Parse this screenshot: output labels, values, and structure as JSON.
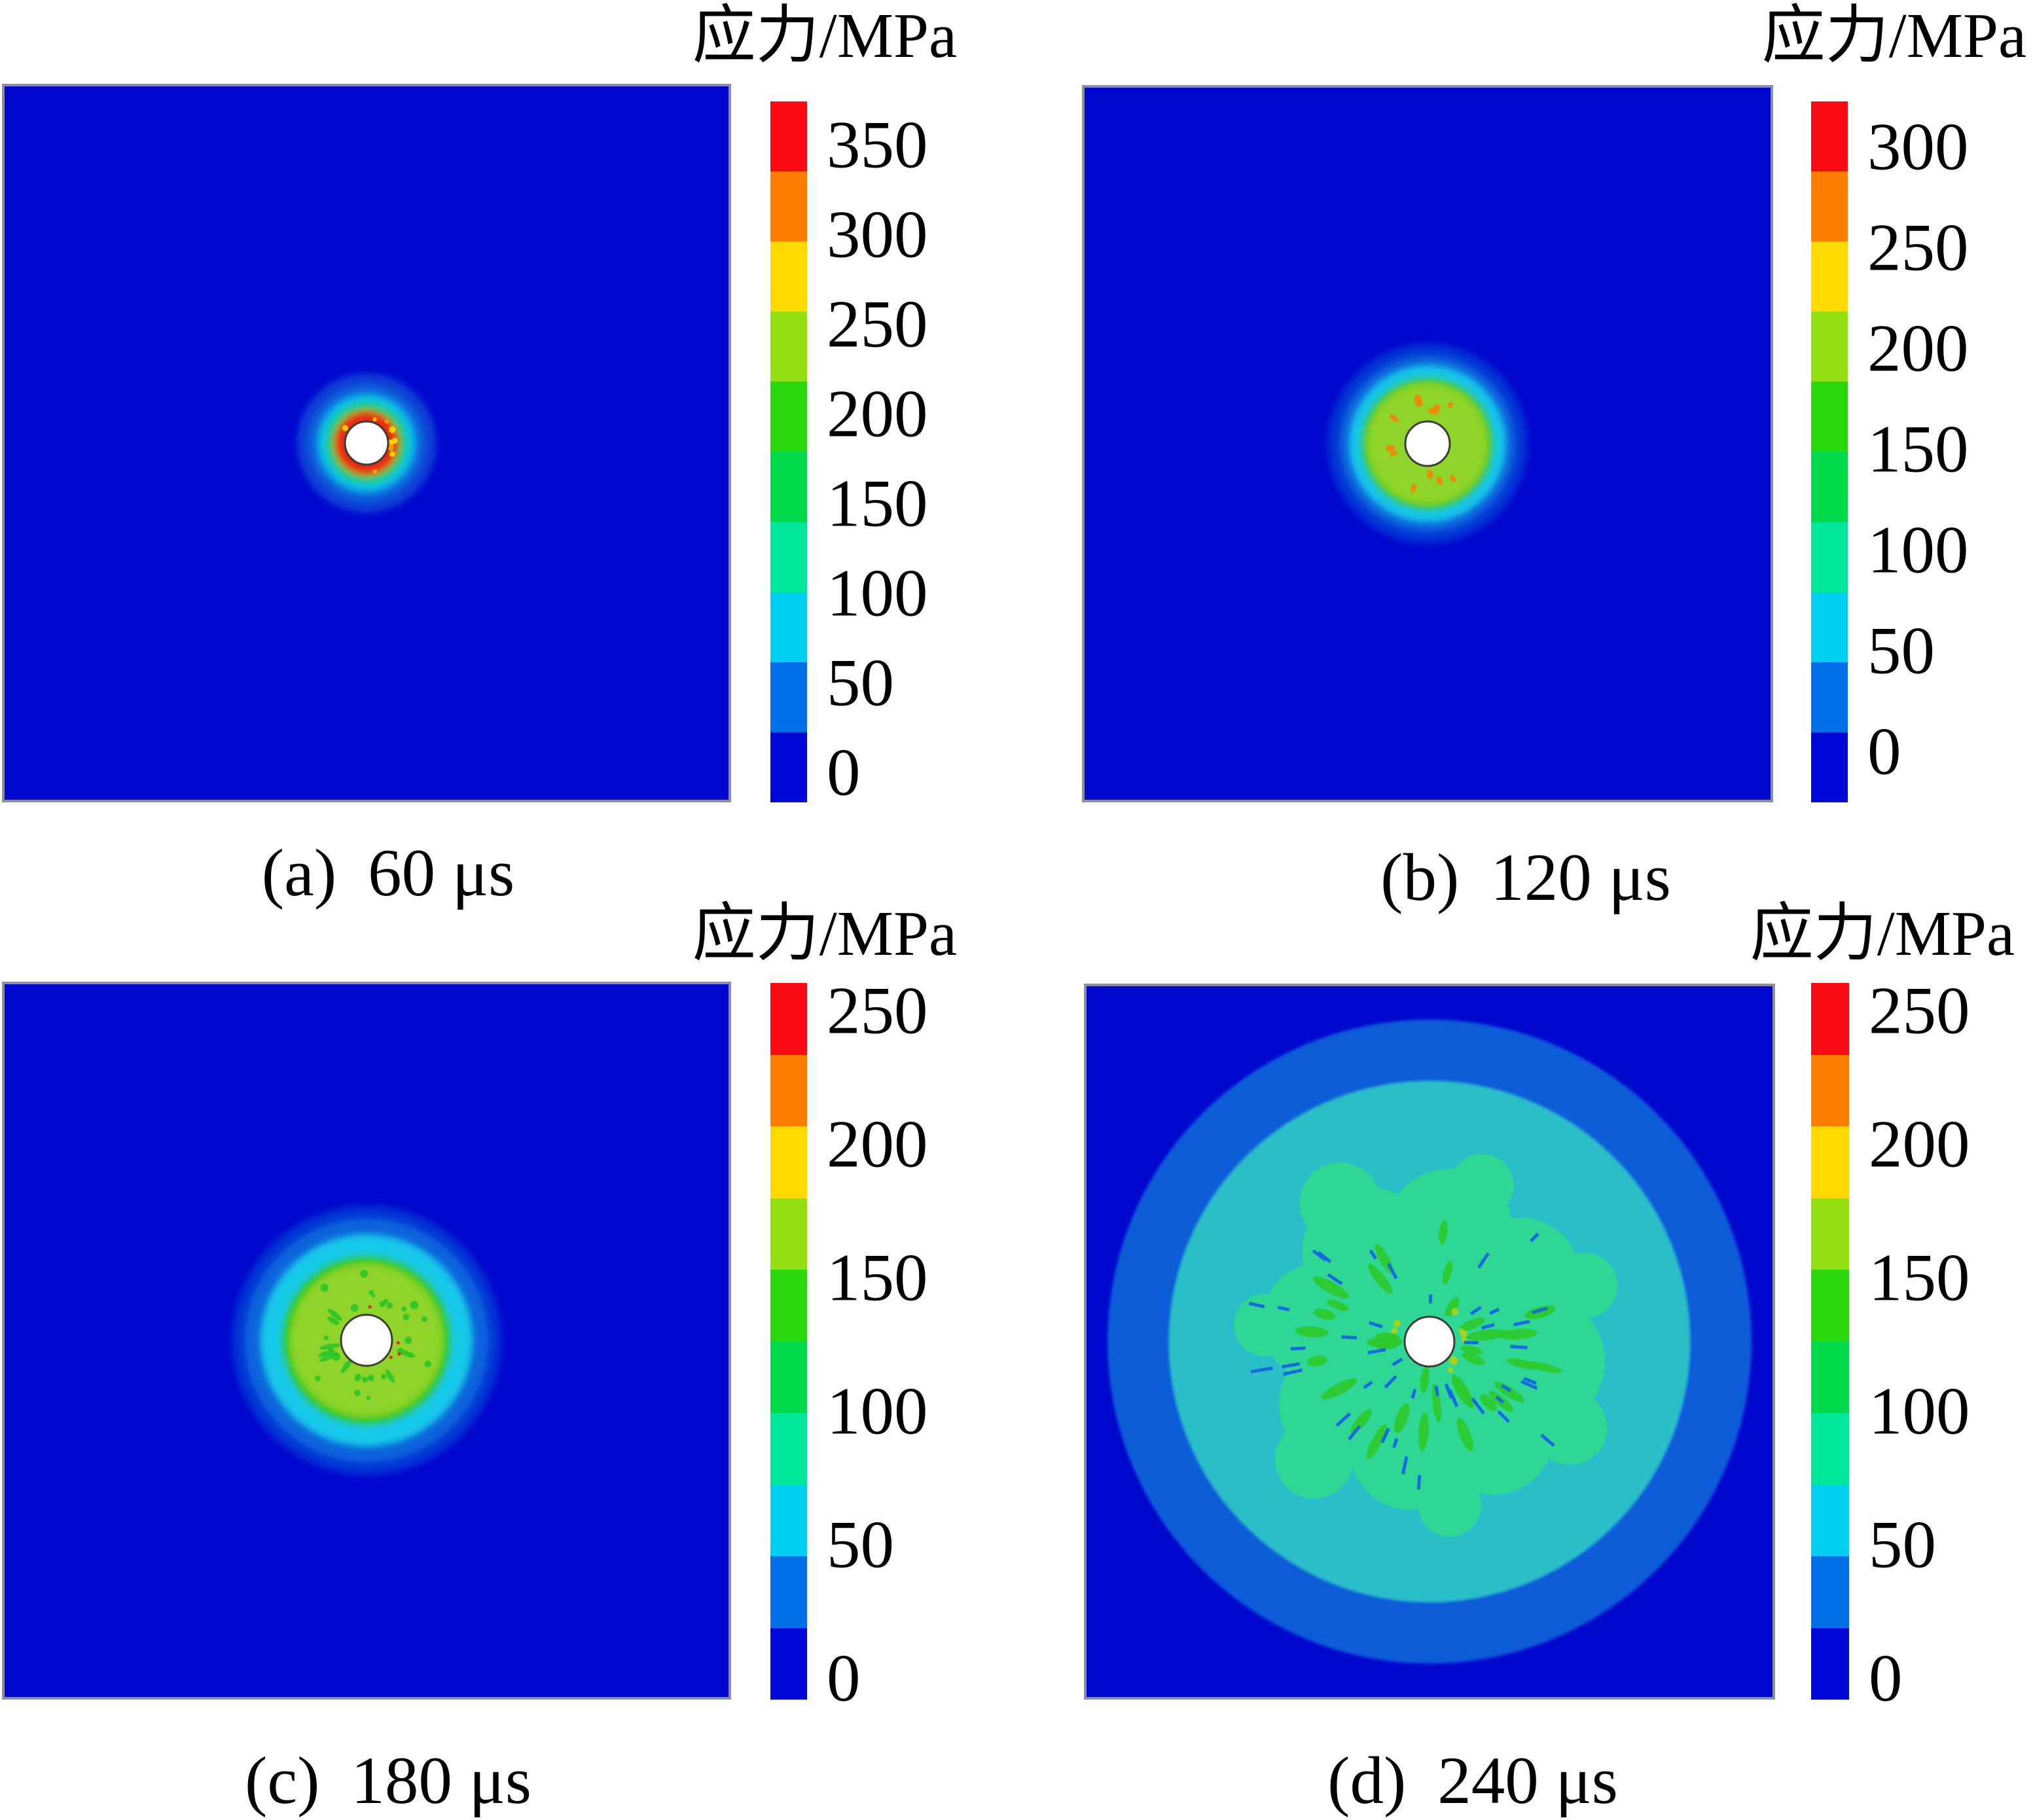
{
  "figure": {
    "colorbar_title": "应力/MPa",
    "units": "MPa",
    "background_color": "#0108ce",
    "hole_color": "#ffffff",
    "scale_colors": [
      "#f90b16",
      "#ff7d00",
      "#ffd900",
      "#93df12",
      "#2bd80e",
      "#00d94a",
      "#00e69a",
      "#00cff2",
      "#0070e8",
      "#0008d8"
    ],
    "panels": [
      {
        "key": "a",
        "caption": "(a)",
        "time": "60 μs",
        "ticks": [
          "350",
          "300",
          "250",
          "200",
          "150",
          "100",
          "50",
          "0"
        ]
      },
      {
        "key": "b",
        "caption": "(b)",
        "time": "120 μs",
        "ticks": [
          "300",
          "250",
          "200",
          "150",
          "100",
          "50",
          "0"
        ]
      },
      {
        "key": "c",
        "caption": "(c)",
        "time": "180 μs",
        "ticks": [
          "250",
          "200",
          "150",
          "100",
          "50",
          "0"
        ]
      },
      {
        "key": "d",
        "caption": "(d)",
        "time": "240 μs",
        "ticks": [
          "250",
          "200",
          "150",
          "100",
          "50",
          "0"
        ]
      }
    ]
  },
  "chart_data": [
    {
      "type": "heatmap",
      "title": "应力/MPa",
      "panel": "(a)",
      "time_us": 60,
      "colorbar_ticks_mpa": [
        350,
        300,
        250,
        200,
        150,
        100,
        50,
        0
      ],
      "colorbar_levels": 10,
      "legend_position": "right",
      "field": "stress contour around a central circular borehole in a square domain",
      "zones_outward_from_hole": [
        {
          "value_mpa": 350,
          "color": "red",
          "approx_radius_frac": 0.045,
          "note": "thin red ring with yellow speckles at hole wall"
        },
        {
          "value_mpa": 200,
          "color": "green",
          "approx_radius_frac": 0.051
        },
        {
          "value_mpa": 100,
          "color": "spring-green",
          "approx_radius_frac": 0.058
        },
        {
          "value_mpa": 60,
          "color": "cyan",
          "approx_radius_frac": 0.067
        },
        {
          "value_mpa": 0,
          "color": "dark-blue background",
          "approx_radius_frac": 1.0
        }
      ]
    },
    {
      "type": "heatmap",
      "title": "应力/MPa",
      "panel": "(b)",
      "time_us": 120,
      "colorbar_ticks_mpa": [
        300,
        250,
        200,
        150,
        100,
        50,
        0
      ],
      "colorbar_levels": 10,
      "legend_position": "right",
      "field": "stress contour around a central circular borehole in a square domain",
      "zones_outward_from_hole": [
        {
          "value_mpa": 200,
          "color": "yellow-green disc with orange radial speckles",
          "approx_radius_frac": 0.088
        },
        {
          "value_mpa": 150,
          "color": "green ring",
          "approx_radius_frac": 0.097
        },
        {
          "value_mpa": 60,
          "color": "cyan ring",
          "approx_radius_frac": 0.113
        },
        {
          "value_mpa": 30,
          "color": "blue ring",
          "approx_radius_frac": 0.128
        },
        {
          "value_mpa": 0,
          "color": "dark-blue background",
          "approx_radius_frac": 1.0
        }
      ]
    },
    {
      "type": "heatmap",
      "title": "应力/MPa",
      "panel": "(c)",
      "time_us": 180,
      "colorbar_ticks_mpa": [
        250,
        200,
        150,
        100,
        50,
        0
      ],
      "colorbar_levels": 10,
      "legend_position": "right",
      "field": "stress contour around a central circular borehole in a square domain",
      "zones_outward_from_hole": [
        {
          "value_mpa": 170,
          "color": "yellow-green disc with green radial speckles",
          "approx_radius_frac": 0.106
        },
        {
          "value_mpa": 140,
          "color": "green ring",
          "approx_radius_frac": 0.117
        },
        {
          "value_mpa": 60,
          "color": "cyan ring",
          "approx_radius_frac": 0.146
        },
        {
          "value_mpa": 30,
          "color": "blue ring",
          "approx_radius_frac": 0.168
        },
        {
          "value_mpa": 0,
          "color": "dark-blue background",
          "approx_radius_frac": 1.0
        }
      ]
    },
    {
      "type": "heatmap",
      "title": "应力/MPa",
      "panel": "(d)",
      "time_us": 240,
      "colorbar_ticks_mpa": [
        250,
        200,
        150,
        100,
        50,
        0
      ],
      "colorbar_levels": 10,
      "legend_position": "right",
      "field": "stress contour around a central circular borehole in a square domain",
      "zones_outward_from_hole": [
        {
          "value_mpa": 120,
          "color": "spring-green flower-shaped zone with green streaks and dark-blue radial dashes",
          "approx_radius_frac": 0.22
        },
        {
          "value_mpa": 70,
          "color": "turquoise disc",
          "approx_radius_frac": 0.38
        },
        {
          "value_mpa": 30,
          "color": "blue ring",
          "approx_radius_frac": 0.47
        },
        {
          "value_mpa": 0,
          "color": "dark-blue background",
          "approx_radius_frac": 1.0
        }
      ]
    }
  ]
}
